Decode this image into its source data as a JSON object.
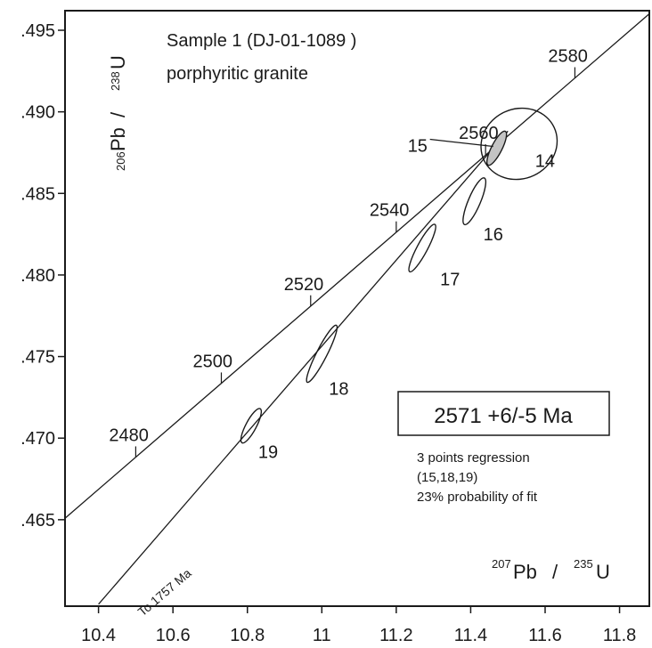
{
  "chart_data": {
    "type": "scatter",
    "x_ticks": [
      "10.4",
      "10.6",
      "10.8",
      "11",
      "11.2",
      "11.4",
      "11.6",
      "11.8"
    ],
    "y_ticks": [
      ".495",
      ".490",
      ".485",
      ".480",
      ".475",
      ".470",
      ".465"
    ],
    "xlim": [
      10.31,
      11.88
    ],
    "ylim": [
      0.4597,
      0.4962
    ],
    "grid": false,
    "xlabel": {
      "sup1": "207",
      "mid1": "Pb",
      "sep": "/",
      "sup2": "235",
      "mid2": "U"
    },
    "ylabel": {
      "sup1": "206",
      "mid1": "Pb",
      "sep": "/",
      "sup2": "238",
      "mid2": "U"
    },
    "sample_title": "Sample 1 (DJ-01-1089 )",
    "sample_subtitle": "porphyritic granite",
    "concordia": {
      "points": [
        {
          "x": 10.31,
          "y": 0.46509
        },
        {
          "x": 11.88,
          "y": 0.49601
        }
      ],
      "age_ticks": [
        {
          "label": "2480",
          "x": 10.5,
          "y": 0.46884
        },
        {
          "label": "2500",
          "x": 10.73,
          "y": 0.47337
        },
        {
          "label": "2520",
          "x": 10.97,
          "y": 0.4781
        },
        {
          "label": "2540",
          "x": 11.2,
          "y": 0.48263
        },
        {
          "label": "2560",
          "x": 11.44,
          "y": 0.48736
        },
        {
          "label": "2580",
          "x": 11.68,
          "y": 0.49208
        }
      ]
    },
    "discordia": {
      "label": "To 1757 Ma",
      "points": [
        {
          "x": 10.4,
          "y": 0.45982
        },
        {
          "x": 11.5,
          "y": 0.48882
        }
      ]
    },
    "ellipses": [
      {
        "label": "14",
        "cx": 11.53,
        "cy": 0.48804,
        "rx": 0.104,
        "ry": 0.00214,
        "rotate_deg": -25,
        "shaded": false
      },
      {
        "label": "15",
        "cx": 11.47,
        "cy": 0.48777,
        "rx": 0.051,
        "ry": 0.00032,
        "rotate_deg": -63,
        "shaded": true
      },
      {
        "label": "16",
        "cx": 11.41,
        "cy": 0.48452,
        "rx": 0.068,
        "ry": 0.00037,
        "rotate_deg": -67,
        "shaded": false
      },
      {
        "label": "17",
        "cx": 11.27,
        "cy": 0.48165,
        "rx": 0.072,
        "ry": 0.00032,
        "rotate_deg": -62,
        "shaded": false
      },
      {
        "label": "18",
        "cx": 11.0,
        "cy": 0.47517,
        "rx": 0.086,
        "ry": 0.00032,
        "rotate_deg": -63,
        "shaded": false
      },
      {
        "label": "19",
        "cx": 10.81,
        "cy": 0.47076,
        "rx": 0.052,
        "ry": 0.00032,
        "rotate_deg": -62,
        "shaded": false
      }
    ],
    "result": {
      "age": "2571 +6/-5 Ma",
      "notes": [
        "3 points regression",
        "(15,18,19)",
        "23% probability of fit"
      ]
    }
  }
}
